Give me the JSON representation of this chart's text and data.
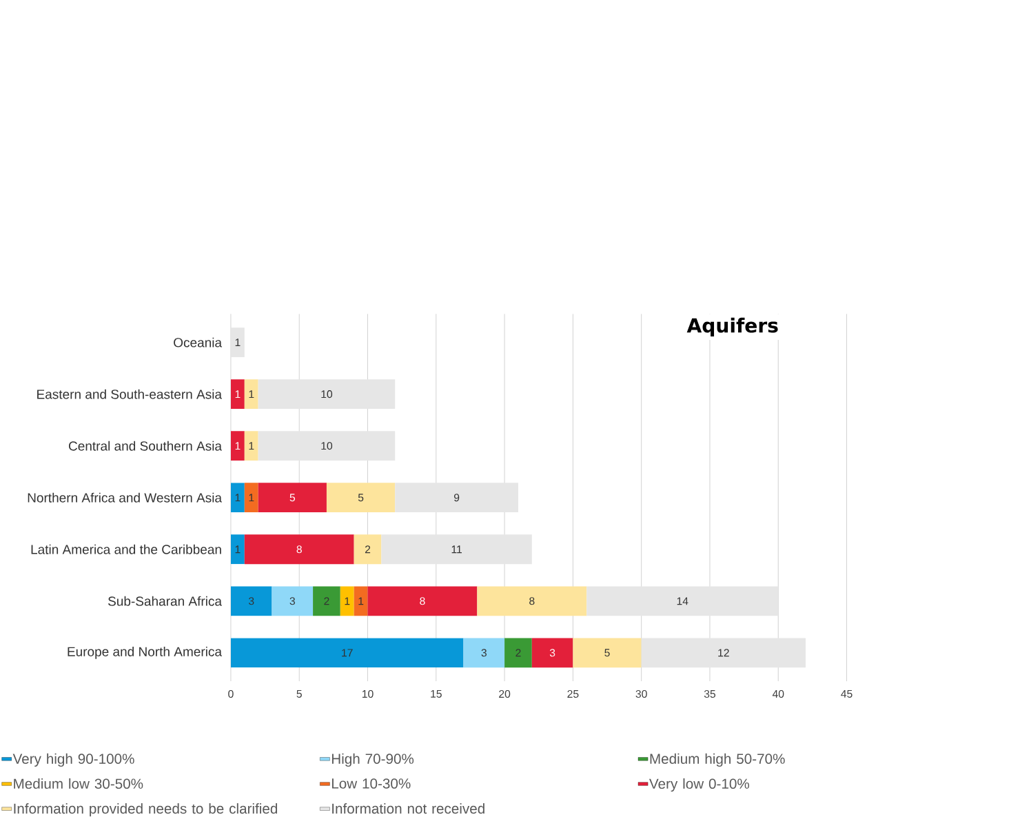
{
  "chart_data": {
    "type": "bar",
    "orientation": "horizontal",
    "stacked": true,
    "title": "Aquifers",
    "categories": [
      "Oceania",
      "Eastern and South-eastern Asia",
      "Central and Southern Asia",
      "Northern Africa and Western Asia",
      "Latin America and the Caribbean",
      "Sub-Saharan Africa",
      "Europe and North America"
    ],
    "series": [
      {
        "name": "Very high 90-100%",
        "color": "#0898d8",
        "values": [
          null,
          null,
          null,
          1,
          1,
          3,
          17
        ]
      },
      {
        "name": "High 70-90%",
        "color": "#8fd8f8",
        "values": [
          null,
          null,
          null,
          null,
          null,
          3,
          3
        ]
      },
      {
        "name": "Medium high 50-70%",
        "color": "#3a9a35",
        "values": [
          null,
          null,
          null,
          null,
          null,
          2,
          2
        ]
      },
      {
        "name": "Medium low 30-50%",
        "color": "#ffc000",
        "values": [
          null,
          null,
          null,
          null,
          null,
          1,
          null
        ]
      },
      {
        "name": "Low 10-30%",
        "color": "#f36c21",
        "values": [
          null,
          null,
          null,
          1,
          null,
          1,
          null
        ]
      },
      {
        "name": "Very low 0-10%",
        "color": "#e3203a",
        "values": [
          null,
          1,
          1,
          5,
          8,
          8,
          3
        ]
      },
      {
        "name": "Information provided needs to be clarified",
        "color": "#fde49c",
        "values": [
          null,
          1,
          1,
          5,
          2,
          8,
          5
        ]
      },
      {
        "name": "Information not received",
        "color": "#e6e6e6",
        "values": [
          1,
          10,
          10,
          9,
          11,
          14,
          12
        ]
      }
    ],
    "xlim": [
      0,
      45
    ],
    "xticks": [
      0,
      5,
      10,
      15,
      20,
      25,
      30,
      35,
      40,
      45
    ],
    "grid": "x",
    "legend": "bottom",
    "data_labels": true
  }
}
